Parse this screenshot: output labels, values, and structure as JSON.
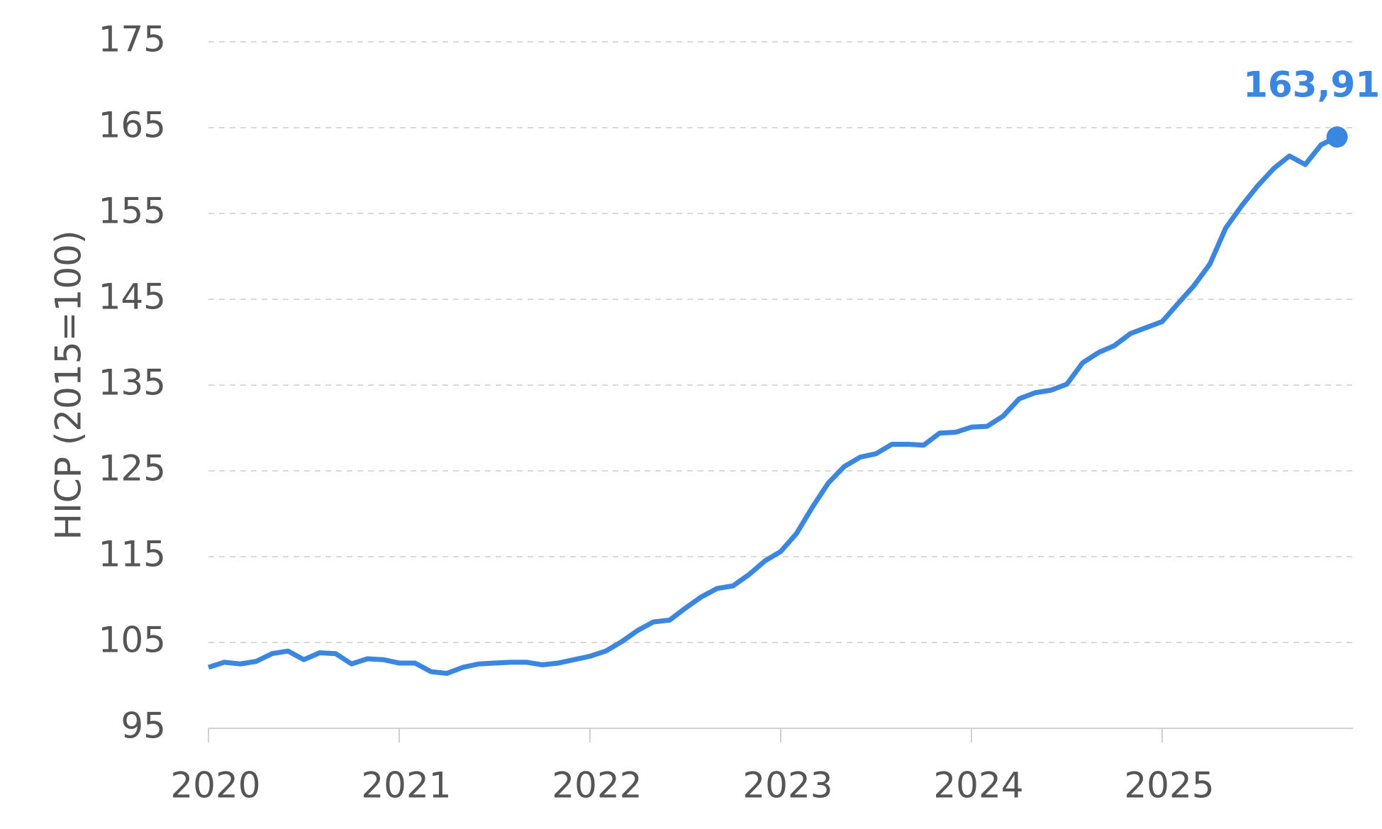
{
  "chart_data": {
    "type": "line",
    "y_label": "HICP (2015=100)",
    "x": [
      2020,
      2020.083,
      2020.167,
      2020.25,
      2020.333,
      2020.417,
      2020.5,
      2020.583,
      2020.667,
      2020.75,
      2020.833,
      2020.917,
      2021,
      2021.083,
      2021.167,
      2021.25,
      2021.333,
      2021.417,
      2021.5,
      2021.583,
      2021.667,
      2021.75,
      2021.833,
      2021.917,
      2022,
      2022.083,
      2022.167,
      2022.25,
      2022.333,
      2022.417,
      2022.5,
      2022.583,
      2022.667,
      2022.75,
      2022.833,
      2022.917,
      2023,
      2023.083,
      2023.167,
      2023.25,
      2023.333,
      2023.417,
      2023.5,
      2023.583,
      2023.667,
      2023.75,
      2023.833,
      2023.917,
      2024,
      2024.083,
      2024.167,
      2024.25,
      2024.333,
      2024.417,
      2024.5,
      2024.583,
      2024.667,
      2024.75,
      2024.833,
      2024.917,
      2025,
      2025.083,
      2025.167,
      2025.25,
      2025.333,
      2025.417,
      2025.5,
      2025.583,
      2025.667,
      2025.75,
      2025.833,
      2025.917
    ],
    "series": [
      {
        "name": "HICP",
        "color": "#3a86e0",
        "values": [
          102.1,
          102.7,
          102.5,
          102.8,
          103.7,
          104.0,
          103.0,
          103.8,
          103.7,
          102.5,
          103.1,
          103.0,
          102.6,
          102.6,
          101.6,
          101.4,
          102.1,
          102.5,
          102.6,
          102.7,
          102.7,
          102.4,
          102.6,
          103.0,
          103.4,
          104.0,
          105.1,
          106.4,
          107.4,
          107.6,
          109.0,
          110.3,
          111.3,
          111.6,
          112.9,
          114.5,
          115.6,
          117.7,
          120.8,
          123.6,
          125.5,
          126.6,
          127.0,
          128.1,
          128.1,
          128.0,
          129.4,
          129.5,
          130.1,
          130.2,
          131.4,
          133.4,
          134.1,
          134.4,
          135.1,
          137.6,
          138.8,
          139.6,
          141.0,
          141.7,
          142.4,
          144.5,
          146.6,
          149.1,
          153.3,
          155.9,
          158.2,
          160.2,
          161.7,
          160.7,
          163.0,
          163.91
        ]
      }
    ],
    "last_value_label": "163,91",
    "xlim": [
      2020,
      2026
    ],
    "xticks": [
      2020,
      2021,
      2022,
      2023,
      2024,
      2025
    ],
    "ylim": [
      95,
      175
    ],
    "yticks": [
      95,
      105,
      115,
      125,
      135,
      145,
      155,
      165,
      175
    ],
    "grid": true
  }
}
